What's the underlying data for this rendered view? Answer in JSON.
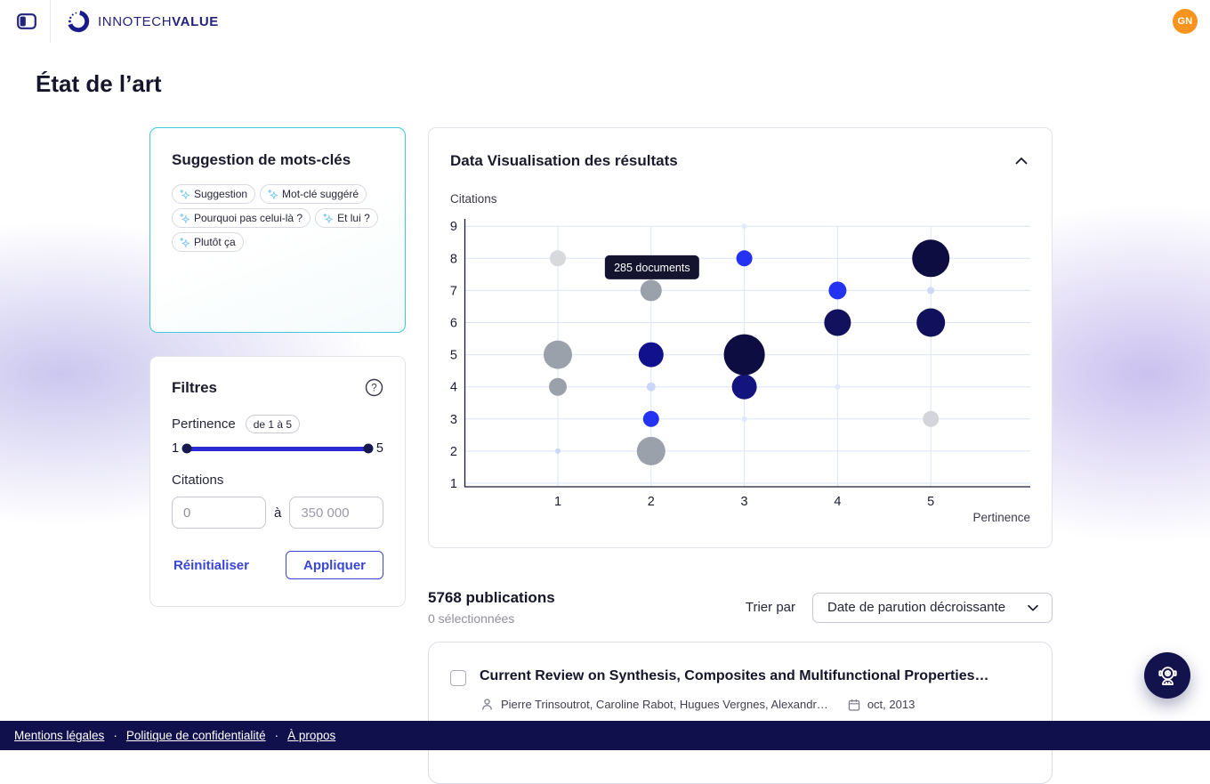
{
  "header": {
    "brand_first": "INNOTECH",
    "brand_second": "VALUE",
    "avatar_initials": "GN"
  },
  "page_title": "État de l’art",
  "keywords_card": {
    "title": "Suggestion de mots-clés",
    "chips": [
      "Suggestion",
      "Mot-clé suggéré",
      "Pourquoi pas celui-là ?",
      "Et lui ?",
      "Plutôt ça"
    ]
  },
  "filters_card": {
    "title": "Filtres",
    "pertinence_label": "Pertinence",
    "pertinence_badge": "de 1 à 5",
    "slider_min_label": "1",
    "slider_max_label": "5",
    "citations_label": "Citations",
    "min_value": "0",
    "between_label": "à",
    "max_placeholder": "350 000",
    "reset_label": "Réinitialiser",
    "apply_label": "Appliquer"
  },
  "results_card": {
    "title": "Data Visualisation des résultats"
  },
  "chart_data": {
    "type": "scatter",
    "xlabel": "Pertinence",
    "ylabel": "Citations",
    "xticks": [
      1,
      2,
      3,
      4,
      5
    ],
    "yticks": [
      1,
      2,
      3,
      4,
      5,
      6,
      7,
      8,
      9
    ],
    "points": [
      {
        "x": 1,
        "y": 2,
        "r": 3,
        "color": "#c9d6f6"
      },
      {
        "x": 1,
        "y": 4,
        "r": 10,
        "color": "#9aa1ab"
      },
      {
        "x": 1,
        "y": 5,
        "r": 16,
        "color": "#9aa1ab"
      },
      {
        "x": 1,
        "y": 8,
        "r": 9,
        "color": "#d7d9dd"
      },
      {
        "x": 2,
        "y": 2,
        "r": 16,
        "color": "#9aa1ab"
      },
      {
        "x": 2,
        "y": 3,
        "r": 9,
        "color": "#2433f2"
      },
      {
        "x": 2,
        "y": 4,
        "r": 5,
        "color": "#c9d6f6"
      },
      {
        "x": 2,
        "y": 5,
        "r": 14,
        "color": "#11118d"
      },
      {
        "x": 2,
        "y": 7,
        "r": 12,
        "color": "#9aa1ab"
      },
      {
        "x": 3,
        "y": 3,
        "r": 3,
        "color": "#dfe7fb"
      },
      {
        "x": 3,
        "y": 4,
        "r": 14,
        "color": "#14147e"
      },
      {
        "x": 3,
        "y": 5,
        "r": 23,
        "color": "#0d0d42"
      },
      {
        "x": 3,
        "y": 8,
        "r": 9,
        "color": "#2433f2"
      },
      {
        "x": 3,
        "y": 9,
        "r": 3,
        "color": "#e3e9fc"
      },
      {
        "x": 4,
        "y": 4,
        "r": 3,
        "color": "#e3e9fc"
      },
      {
        "x": 4,
        "y": 6,
        "r": 15,
        "color": "#11115e"
      },
      {
        "x": 4,
        "y": 7,
        "r": 10,
        "color": "#2433f2"
      },
      {
        "x": 5,
        "y": 3,
        "r": 9,
        "color": "#d3d5da"
      },
      {
        "x": 5,
        "y": 6,
        "r": 16,
        "color": "#10105c"
      },
      {
        "x": 5,
        "y": 7,
        "r": 4,
        "color": "#cdd9f6"
      },
      {
        "x": 5,
        "y": 8,
        "r": 21,
        "color": "#0d0d42"
      }
    ],
    "tooltip": {
      "text": "285 documents",
      "x": 2.01,
      "y": 7.72
    },
    "grid": true,
    "legend": false
  },
  "results_summary": {
    "count_label": "5768 publications",
    "selected_label": "0 sélectionnées",
    "sort_label": "Trier par",
    "sort_value": "Date de parution décroissante"
  },
  "publication": {
    "title": "Current Review on Synthesis, Composites and Multifunctional Properties…",
    "authors": "Pierre Trinsoutrot, Caroline Rabot, Hugues Vergnes, Alexandr…",
    "date": "oct, 2013"
  },
  "footer": {
    "links": [
      "Mentions légales",
      "Politique de confidentialité",
      "À propos"
    ],
    "separator": "·"
  },
  "colors": {
    "accent": "#3a46d8",
    "navy": "#10104d",
    "teal_border": "#43c7d7",
    "grid": "#d9e5f7",
    "axis": "#1b1b30",
    "tooltip_bg": "#14142e",
    "avatar_orange": "#f8941d",
    "sparkle": "#86c9f2",
    "slider_track": "#2b2ad4"
  }
}
